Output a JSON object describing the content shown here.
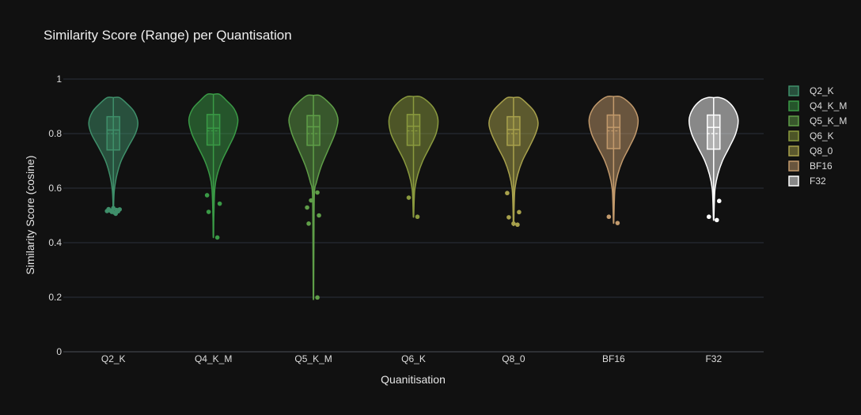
{
  "chart_data": {
    "type": "violin",
    "title": "Similarity Score (Range) per Quantisation",
    "xlabel": "Quanitisation",
    "ylabel": "Similarity Score (cosine)",
    "ylim": [
      0,
      1
    ],
    "yticks": [
      0,
      0.2,
      0.4,
      0.6,
      0.8,
      1
    ],
    "ytick_labels": [
      "0",
      "0.2",
      "0.4",
      "0.6",
      "0.8",
      "1"
    ],
    "grid": true,
    "legend_position": "right",
    "series": [
      {
        "name": "Q2_K",
        "color": "#3f8f6a",
        "min": 0.505,
        "max": 0.932,
        "q1": 0.74,
        "median": 0.813,
        "q3": 0.862,
        "whisker_low": 0.58,
        "whisker_high": 0.932,
        "mean": 0.8,
        "density": [
          [
            0.52,
            0.01
          ],
          [
            0.56,
            0.02
          ],
          [
            0.6,
            0.05
          ],
          [
            0.65,
            0.15
          ],
          [
            0.7,
            0.32
          ],
          [
            0.75,
            0.6
          ],
          [
            0.8,
            0.9
          ],
          [
            0.84,
            1.0
          ],
          [
            0.88,
            0.85
          ],
          [
            0.91,
            0.55
          ],
          [
            0.932,
            0.25
          ]
        ],
        "outliers": [
          [
            -6,
            0.523
          ],
          [
            -4,
            0.518
          ],
          [
            -2,
            0.513
          ],
          [
            0,
            0.527
          ],
          [
            2,
            0.51
          ],
          [
            4,
            0.52
          ],
          [
            6,
            0.515
          ],
          [
            -8,
            0.516
          ],
          [
            8,
            0.522
          ],
          [
            3,
            0.506
          ]
        ]
      },
      {
        "name": "Q4_K_M",
        "color": "#3a9a46",
        "min": 0.419,
        "max": 0.944,
        "q1": 0.758,
        "median": 0.82,
        "q3": 0.87,
        "whisker_low": 0.6,
        "whisker_high": 0.944,
        "mean": 0.81,
        "density": [
          [
            0.43,
            0.01
          ],
          [
            0.5,
            0.02
          ],
          [
            0.6,
            0.06
          ],
          [
            0.65,
            0.16
          ],
          [
            0.7,
            0.35
          ],
          [
            0.75,
            0.62
          ],
          [
            0.8,
            0.88
          ],
          [
            0.85,
            1.0
          ],
          [
            0.89,
            0.85
          ],
          [
            0.92,
            0.55
          ],
          [
            0.944,
            0.25
          ]
        ],
        "outliers": [
          [
            -8,
            0.574
          ],
          [
            8,
            0.543
          ],
          [
            -6,
            0.513
          ],
          [
            5,
            0.419
          ]
        ]
      },
      {
        "name": "Q5_K_M",
        "color": "#5f9e48",
        "min": 0.199,
        "max": 0.94,
        "q1": 0.757,
        "median": 0.825,
        "q3": 0.866,
        "whisker_low": 0.6,
        "whisker_high": 0.94,
        "mean": 0.8,
        "density": [
          [
            0.21,
            0.01
          ],
          [
            0.4,
            0.02
          ],
          [
            0.58,
            0.04
          ],
          [
            0.62,
            0.12
          ],
          [
            0.68,
            0.32
          ],
          [
            0.74,
            0.6
          ],
          [
            0.8,
            0.88
          ],
          [
            0.85,
            1.0
          ],
          [
            0.89,
            0.85
          ],
          [
            0.92,
            0.55
          ],
          [
            0.94,
            0.25
          ]
        ],
        "outliers": [
          [
            -3,
            0.555
          ],
          [
            5,
            0.584
          ],
          [
            -8,
            0.529
          ],
          [
            7,
            0.5
          ],
          [
            -6,
            0.47
          ],
          [
            5,
            0.199
          ]
        ]
      },
      {
        "name": "Q6_K",
        "color": "#8a9a3e",
        "min": 0.495,
        "max": 0.936,
        "q1": 0.757,
        "median": 0.827,
        "q3": 0.87,
        "whisker_low": 0.6,
        "whisker_high": 0.936,
        "mean": 0.81,
        "density": [
          [
            0.5,
            0.01
          ],
          [
            0.56,
            0.03
          ],
          [
            0.6,
            0.06
          ],
          [
            0.65,
            0.18
          ],
          [
            0.7,
            0.38
          ],
          [
            0.75,
            0.66
          ],
          [
            0.8,
            0.92
          ],
          [
            0.85,
            1.0
          ],
          [
            0.89,
            0.85
          ],
          [
            0.92,
            0.55
          ],
          [
            0.936,
            0.25
          ]
        ],
        "outliers": [
          [
            -6,
            0.565
          ],
          [
            5,
            0.495
          ]
        ]
      },
      {
        "name": "Q8_0",
        "color": "#a8a14c",
        "min": 0.466,
        "max": 0.932,
        "q1": 0.757,
        "median": 0.815,
        "q3": 0.862,
        "whisker_low": 0.6,
        "whisker_high": 0.932,
        "mean": 0.8,
        "density": [
          [
            0.47,
            0.01
          ],
          [
            0.55,
            0.03
          ],
          [
            0.6,
            0.06
          ],
          [
            0.65,
            0.17
          ],
          [
            0.7,
            0.36
          ],
          [
            0.75,
            0.64
          ],
          [
            0.8,
            0.9
          ],
          [
            0.84,
            1.0
          ],
          [
            0.88,
            0.85
          ],
          [
            0.91,
            0.55
          ],
          [
            0.932,
            0.25
          ]
        ],
        "outliers": [
          [
            -8,
            0.582
          ],
          [
            7,
            0.512
          ],
          [
            -6,
            0.493
          ],
          [
            0,
            0.47
          ],
          [
            5,
            0.466
          ]
        ]
      },
      {
        "name": "BF16",
        "color": "#c29a6c",
        "min": 0.472,
        "max": 0.936,
        "q1": 0.745,
        "median": 0.823,
        "q3": 0.868,
        "whisker_low": 0.6,
        "whisker_high": 0.936,
        "mean": 0.81,
        "density": [
          [
            0.48,
            0.01
          ],
          [
            0.55,
            0.03
          ],
          [
            0.6,
            0.06
          ],
          [
            0.65,
            0.17
          ],
          [
            0.7,
            0.36
          ],
          [
            0.75,
            0.64
          ],
          [
            0.8,
            0.9
          ],
          [
            0.85,
            1.0
          ],
          [
            0.89,
            0.85
          ],
          [
            0.92,
            0.55
          ],
          [
            0.936,
            0.25
          ]
        ],
        "outliers": [
          [
            -6,
            0.495
          ],
          [
            5,
            0.472
          ]
        ]
      },
      {
        "name": "F32",
        "color": "#ffffff",
        "min": 0.483,
        "max": 0.932,
        "q1": 0.743,
        "median": 0.823,
        "q3": 0.868,
        "whisker_low": 0.57,
        "whisker_high": 0.932,
        "mean": 0.8,
        "density": [
          [
            0.49,
            0.01
          ],
          [
            0.55,
            0.03
          ],
          [
            0.6,
            0.06
          ],
          [
            0.65,
            0.17
          ],
          [
            0.7,
            0.36
          ],
          [
            0.75,
            0.64
          ],
          [
            0.8,
            0.9
          ],
          [
            0.85,
            1.0
          ],
          [
            0.89,
            0.85
          ],
          [
            0.92,
            0.55
          ],
          [
            0.932,
            0.25
          ]
        ],
        "outliers": [
          [
            7,
            0.553
          ],
          [
            -6,
            0.495
          ],
          [
            4,
            0.483
          ]
        ]
      }
    ]
  }
}
